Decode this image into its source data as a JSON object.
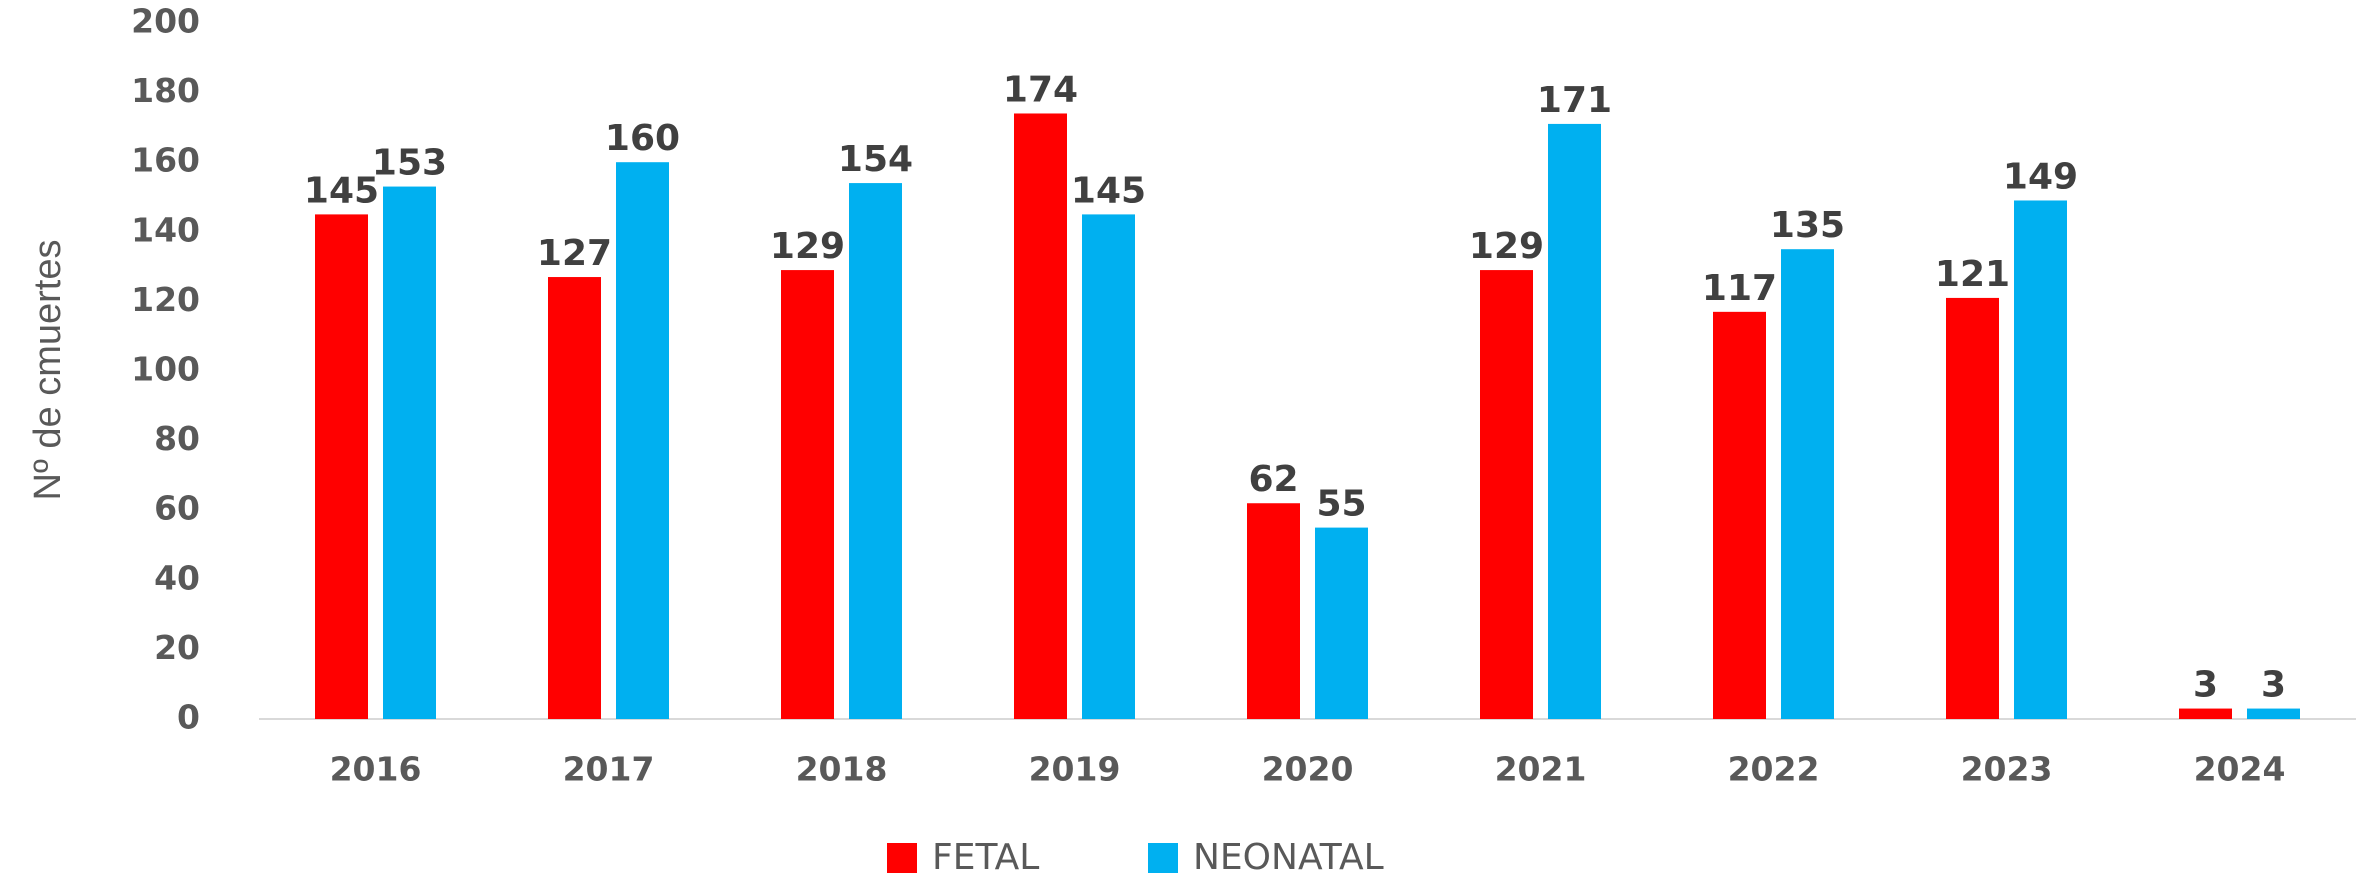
{
  "chart_data": {
    "type": "bar",
    "y_label": "Nº de cmuertes",
    "categories": [
      "2016",
      "2017",
      "2018",
      "2019",
      "2020",
      "2021",
      "2022",
      "2023",
      "2024"
    ],
    "series": [
      {
        "name": "FETAL",
        "color": "#ff0000",
        "values": [
          145,
          127,
          129,
          174,
          62,
          129,
          117,
          121,
          3
        ]
      },
      {
        "name": "NEONATAL",
        "color": "#00b0f0",
        "values": [
          153,
          160,
          154,
          145,
          55,
          171,
          135,
          149,
          3
        ]
      }
    ],
    "ylim": [
      0,
      200
    ],
    "yticks": [
      0,
      20,
      40,
      60,
      80,
      100,
      120,
      140,
      160,
      180,
      200
    ],
    "grid": false,
    "legend": "bottom"
  }
}
